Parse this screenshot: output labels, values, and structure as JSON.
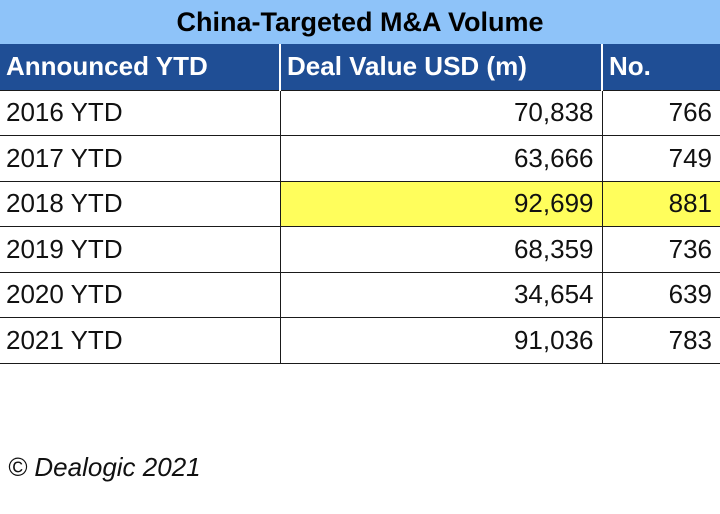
{
  "title": "China-Targeted M&A Volume",
  "source": "© Dealogic 2021",
  "colors": {
    "title_bg": "#8ec3f9",
    "header_bg": "#1f4e95",
    "highlight": "#fffe5c"
  },
  "chart_data": {
    "type": "table",
    "title": "China-Targeted M&A Volume",
    "columns": [
      "Announced YTD",
      "Deal Value USD (m)",
      "No."
    ],
    "rows": [
      {
        "label": "2016 YTD",
        "deal_value": "70,838",
        "count": "766",
        "highlight": false
      },
      {
        "label": "2017 YTD",
        "deal_value": "63,666",
        "count": "749",
        "highlight": false
      },
      {
        "label": "2018 YTD",
        "deal_value": "92,699",
        "count": "881",
        "highlight": true
      },
      {
        "label": "2019 YTD",
        "deal_value": "68,359",
        "count": "736",
        "highlight": false
      },
      {
        "label": "2020 YTD",
        "deal_value": "34,654",
        "count": "639",
        "highlight": false
      },
      {
        "label": "2021 YTD",
        "deal_value": "91,036",
        "count": "783",
        "highlight": false
      }
    ]
  }
}
